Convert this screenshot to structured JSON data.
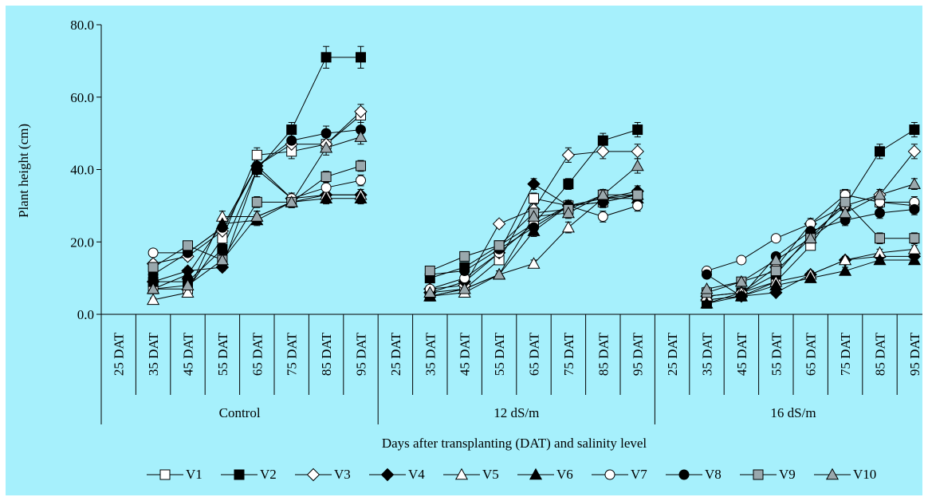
{
  "chart_data": {
    "type": "line",
    "title": "",
    "ylabel": "Plant height (cm)",
    "xlabel": "Days after transplanting (DAT) and salinity level",
    "ylim": [
      0,
      80
    ],
    "yticks": [
      "0.0",
      "20.0",
      "40.0",
      "60.0",
      "80.0"
    ],
    "ytick_values": [
      0,
      20,
      40,
      60,
      80
    ],
    "days": [
      "25 DAT",
      "35 DAT",
      "45 DAT",
      "55 DAT",
      "65 DAT",
      "75 DAT",
      "85 DAT",
      "95 DAT"
    ],
    "groups": [
      "Control",
      "12 dS/m",
      "16 dS/m"
    ],
    "grid": false,
    "legend_position": "bottom",
    "colors": {
      "background": "#a6f0fc",
      "grey_marker": "#9aa8ad",
      "black": "#000000",
      "white": "#ffffff"
    },
    "series": [
      {
        "name": "V1",
        "marker": "square",
        "fill": "white",
        "values": [
          [
            null,
            7,
            7,
            21,
            44,
            45,
            47,
            55
          ],
          [
            null,
            5,
            7,
            15,
            32,
            30,
            31,
            33
          ],
          [
            null,
            4,
            5,
            9,
            19,
            33,
            31,
            30
          ]
        ],
        "errors": [
          [
            0,
            1,
            1,
            1.5,
            2,
            2,
            2,
            2
          ],
          [
            0,
            0.5,
            0.5,
            1,
            1.5,
            1.5,
            1.5,
            1.5
          ],
          [
            0,
            0.5,
            0.5,
            1,
            1,
            1.5,
            1.5,
            1.5
          ]
        ]
      },
      {
        "name": "V2",
        "marker": "square",
        "fill": "black",
        "values": [
          [
            null,
            9,
            9,
            18,
            40,
            51,
            71,
            71
          ],
          [
            null,
            10,
            13,
            19,
            25,
            36,
            48,
            51
          ],
          [
            null,
            3,
            6,
            11,
            22,
            30,
            45,
            51
          ]
        ],
        "errors": [
          [
            0,
            1,
            1,
            1.5,
            2,
            2,
            3,
            3
          ],
          [
            0,
            1,
            1,
            1,
            1.5,
            1.5,
            2,
            2
          ],
          [
            0,
            0.5,
            0.5,
            1,
            1,
            1.5,
            2,
            2
          ]
        ]
      },
      {
        "name": "V3",
        "marker": "diamond",
        "fill": "white",
        "values": [
          [
            null,
            14,
            16,
            23,
            41,
            47,
            47,
            56
          ],
          [
            null,
            7,
            8,
            25,
            29,
            44,
            45,
            45
          ],
          [
            null,
            5,
            6,
            13,
            25,
            30,
            33,
            45
          ]
        ],
        "errors": [
          [
            0,
            1,
            1,
            1.5,
            2,
            2,
            2,
            2
          ],
          [
            0,
            0.5,
            0.5,
            1,
            1.5,
            2,
            2,
            2
          ],
          [
            0,
            0.5,
            0.5,
            1,
            1,
            1.5,
            1.5,
            2
          ]
        ]
      },
      {
        "name": "V4",
        "marker": "diamond",
        "fill": "black",
        "values": [
          [
            null,
            9,
            12,
            13,
            40,
            32,
            33,
            33
          ],
          [
            null,
            6,
            9,
            17,
            36,
            30,
            32,
            34
          ],
          [
            null,
            4,
            5,
            6,
            11,
            15,
            16,
            16
          ]
        ],
        "errors": [
          [
            0,
            1,
            1,
            1,
            2,
            1.5,
            1.5,
            1.5
          ],
          [
            0,
            0.5,
            0.5,
            1,
            1.5,
            1.5,
            1.5,
            1.5
          ],
          [
            0,
            0.5,
            0.5,
            0.5,
            1,
            1,
            1,
            1
          ]
        ]
      },
      {
        "name": "V5",
        "marker": "triangle",
        "fill": "white",
        "values": [
          [
            null,
            4,
            6,
            27,
            27,
            31,
            33,
            33
          ],
          [
            null,
            5,
            6,
            11,
            14,
            24,
            32,
            33
          ],
          [
            null,
            5,
            6,
            9,
            11,
            15,
            17,
            18
          ]
        ],
        "errors": [
          [
            0,
            0.5,
            0.5,
            1.5,
            1.5,
            1.5,
            1.5,
            1.5
          ],
          [
            0,
            0.5,
            0.5,
            1,
            1,
            1.5,
            1.5,
            1.5
          ],
          [
            0,
            0.5,
            0.5,
            0.5,
            1,
            1,
            1,
            1
          ]
        ]
      },
      {
        "name": "V6",
        "marker": "triangle",
        "fill": "black",
        "values": [
          [
            null,
            7,
            11,
            25,
            26,
            31,
            32,
            32
          ],
          [
            null,
            5,
            7,
            11,
            23,
            30,
            32,
            32
          ],
          [
            null,
            3,
            5,
            8,
            10,
            12,
            15,
            15
          ]
        ],
        "errors": [
          [
            0,
            0.5,
            1,
            1.5,
            1.5,
            1.5,
            1.5,
            1.5
          ],
          [
            0,
            0.5,
            0.5,
            1,
            1.5,
            1.5,
            1.5,
            1.5
          ],
          [
            0,
            0.5,
            0.5,
            0.5,
            1,
            1,
            1,
            1
          ]
        ]
      },
      {
        "name": "V7",
        "marker": "circle",
        "fill": "white",
        "values": [
          [
            null,
            17,
            17,
            24,
            41,
            32,
            35,
            37
          ],
          [
            null,
            7,
            10,
            17,
            25,
            30,
            27,
            30
          ],
          [
            null,
            12,
            15,
            21,
            25,
            33,
            31,
            31
          ]
        ],
        "errors": [
          [
            0,
            1,
            1,
            1.5,
            2,
            1.5,
            1.5,
            1.5
          ],
          [
            0,
            0.5,
            1,
            1,
            1.5,
            1.5,
            1.5,
            1.5
          ],
          [
            0,
            1,
            1,
            1,
            1.5,
            1.5,
            1.5,
            1.5
          ]
        ]
      },
      {
        "name": "V8",
        "marker": "circle",
        "fill": "black",
        "values": [
          [
            null,
            11,
            17,
            24,
            41,
            48,
            50,
            51
          ],
          [
            null,
            11,
            12,
            18,
            24,
            30,
            31,
            33
          ],
          [
            null,
            11,
            5,
            16,
            23,
            26,
            28,
            29
          ]
        ],
        "errors": [
          [
            0,
            1,
            1,
            1.5,
            2,
            2,
            2,
            2
          ],
          [
            0,
            1,
            1,
            1,
            1.5,
            1.5,
            1.5,
            1.5
          ],
          [
            0,
            1,
            0.5,
            1,
            1.5,
            1.5,
            1.5,
            1.5
          ]
        ]
      },
      {
        "name": "V9",
        "marker": "square",
        "fill": "grey",
        "values": [
          [
            null,
            13,
            19,
            15,
            31,
            31,
            38,
            41
          ],
          [
            null,
            12,
            16,
            19,
            28,
            29,
            33,
            33
          ],
          [
            null,
            6,
            9,
            12,
            21,
            31,
            21,
            21
          ]
        ],
        "errors": [
          [
            0,
            1,
            1,
            1,
            1.5,
            1.5,
            1.5,
            1.5
          ],
          [
            0,
            1,
            1,
            1,
            1.5,
            1.5,
            1.5,
            1.5
          ],
          [
            0,
            0.5,
            0.5,
            1,
            1,
            1.5,
            1.5,
            1.5
          ]
        ]
      },
      {
        "name": "V10",
        "marker": "triangle",
        "fill": "grey",
        "values": [
          [
            null,
            7,
            8,
            15,
            27,
            31,
            46,
            49
          ],
          [
            null,
            6,
            7,
            11,
            27,
            28,
            33,
            41
          ],
          [
            null,
            7,
            9,
            15,
            21,
            28,
            33,
            36
          ]
        ],
        "errors": [
          [
            0,
            0.5,
            0.5,
            1,
            1.5,
            1.5,
            2,
            2
          ],
          [
            0,
            0.5,
            0.5,
            1,
            1.5,
            1.5,
            1.5,
            2
          ],
          [
            0,
            0.5,
            0.5,
            1,
            1,
            1.5,
            1.5,
            1.5
          ]
        ]
      }
    ]
  }
}
